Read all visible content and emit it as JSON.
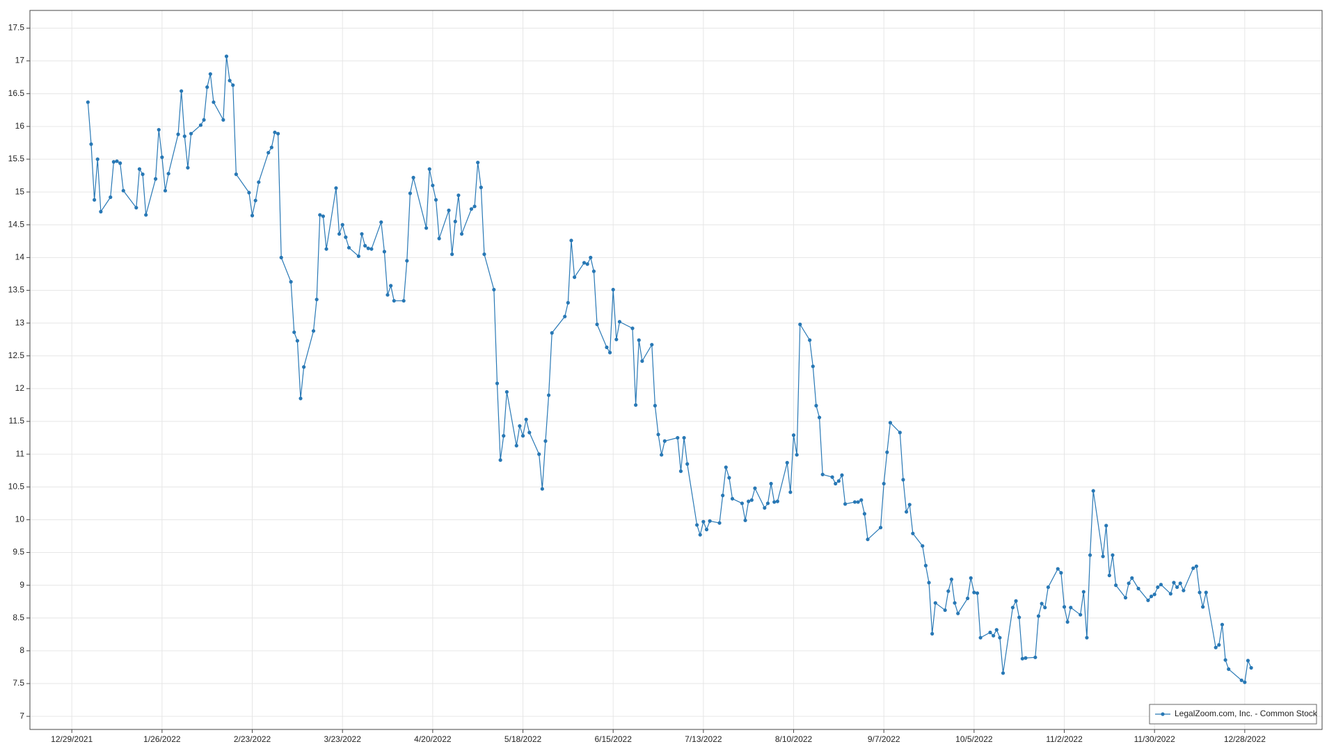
{
  "chart_data": {
    "type": "line",
    "x": [
      "1/3/2022",
      "1/4/2022",
      "1/5/2022",
      "1/6/2022",
      "1/7/2022",
      "1/10/2022",
      "1/11/2022",
      "1/12/2022",
      "1/13/2022",
      "1/14/2022",
      "1/18/2022",
      "1/19/2022",
      "1/20/2022",
      "1/21/2022",
      "1/24/2022",
      "1/25/2022",
      "1/26/2022",
      "1/27/2022",
      "1/28/2022",
      "1/31/2022",
      "2/1/2022",
      "2/2/2022",
      "2/3/2022",
      "2/4/2022",
      "2/7/2022",
      "2/8/2022",
      "2/9/2022",
      "2/10/2022",
      "2/11/2022",
      "2/14/2022",
      "2/15/2022",
      "2/16/2022",
      "2/17/2022",
      "2/18/2022",
      "2/22/2022",
      "2/23/2022",
      "2/24/2022",
      "2/25/2022",
      "2/28/2022",
      "3/1/2022",
      "3/2/2022",
      "3/3/2022",
      "3/4/2022",
      "3/7/2022",
      "3/8/2022",
      "3/9/2022",
      "3/10/2022",
      "3/11/2022",
      "3/14/2022",
      "3/15/2022",
      "3/16/2022",
      "3/17/2022",
      "3/18/2022",
      "3/21/2022",
      "3/22/2022",
      "3/23/2022",
      "3/24/2022",
      "3/25/2022",
      "3/28/2022",
      "3/29/2022",
      "3/30/2022",
      "3/31/2022",
      "4/1/2022",
      "4/4/2022",
      "4/5/2022",
      "4/6/2022",
      "4/7/2022",
      "4/8/2022",
      "4/11/2022",
      "4/12/2022",
      "4/13/2022",
      "4/14/2022",
      "4/18/2022",
      "4/19/2022",
      "4/20/2022",
      "4/21/2022",
      "4/22/2022",
      "4/25/2022",
      "4/26/2022",
      "4/27/2022",
      "4/28/2022",
      "4/29/2022",
      "5/2/2022",
      "5/3/2022",
      "5/4/2022",
      "5/5/2022",
      "5/6/2022",
      "5/9/2022",
      "5/10/2022",
      "5/11/2022",
      "5/12/2022",
      "5/13/2022",
      "5/16/2022",
      "5/17/2022",
      "5/18/2022",
      "5/19/2022",
      "5/20/2022",
      "5/23/2022",
      "5/24/2022",
      "5/25/2022",
      "5/26/2022",
      "5/27/2022",
      "5/31/2022",
      "6/1/2022",
      "6/2/2022",
      "6/3/2022",
      "6/6/2022",
      "6/7/2022",
      "6/8/2022",
      "6/9/2022",
      "6/10/2022",
      "6/13/2022",
      "6/14/2022",
      "6/15/2022",
      "6/16/2022",
      "6/17/2022",
      "6/21/2022",
      "6/22/2022",
      "6/23/2022",
      "6/24/2022",
      "6/27/2022",
      "6/28/2022",
      "6/29/2022",
      "6/30/2022",
      "7/1/2022",
      "7/5/2022",
      "7/6/2022",
      "7/7/2022",
      "7/8/2022",
      "7/11/2022",
      "7/12/2022",
      "7/13/2022",
      "7/14/2022",
      "7/15/2022",
      "7/18/2022",
      "7/19/2022",
      "7/20/2022",
      "7/21/2022",
      "7/22/2022",
      "7/25/2022",
      "7/26/2022",
      "7/27/2022",
      "7/28/2022",
      "7/29/2022",
      "8/1/2022",
      "8/2/2022",
      "8/3/2022",
      "8/4/2022",
      "8/5/2022",
      "8/8/2022",
      "8/9/2022",
      "8/10/2022",
      "8/11/2022",
      "8/12/2022",
      "8/15/2022",
      "8/16/2022",
      "8/17/2022",
      "8/18/2022",
      "8/19/2022",
      "8/22/2022",
      "8/23/2022",
      "8/24/2022",
      "8/25/2022",
      "8/26/2022",
      "8/29/2022",
      "8/30/2022",
      "8/31/2022",
      "9/1/2022",
      "9/2/2022",
      "9/6/2022",
      "9/7/2022",
      "9/8/2022",
      "9/9/2022",
      "9/12/2022",
      "9/13/2022",
      "9/14/2022",
      "9/15/2022",
      "9/16/2022",
      "9/19/2022",
      "9/20/2022",
      "9/21/2022",
      "9/22/2022",
      "9/23/2022",
      "9/26/2022",
      "9/27/2022",
      "9/28/2022",
      "9/29/2022",
      "9/30/2022",
      "10/3/2022",
      "10/4/2022",
      "10/5/2022",
      "10/6/2022",
      "10/7/2022",
      "10/10/2022",
      "10/11/2022",
      "10/12/2022",
      "10/13/2022",
      "10/14/2022",
      "10/17/2022",
      "10/18/2022",
      "10/19/2022",
      "10/20/2022",
      "10/21/2022",
      "10/24/2022",
      "10/25/2022",
      "10/26/2022",
      "10/27/2022",
      "10/28/2022",
      "10/31/2022",
      "11/1/2022",
      "11/2/2022",
      "11/3/2022",
      "11/4/2022",
      "11/7/2022",
      "11/8/2022",
      "11/9/2022",
      "11/10/2022",
      "11/11/2022",
      "11/14/2022",
      "11/15/2022",
      "11/16/2022",
      "11/17/2022",
      "11/18/2022",
      "11/21/2022",
      "11/22/2022",
      "11/23/2022",
      "11/25/2022",
      "11/28/2022",
      "11/29/2022",
      "11/30/2022",
      "12/1/2022",
      "12/2/2022",
      "12/5/2022",
      "12/6/2022",
      "12/7/2022",
      "12/8/2022",
      "12/9/2022",
      "12/12/2022",
      "12/13/2022",
      "12/14/2022",
      "12/15/2022",
      "12/16/2022",
      "12/19/2022",
      "12/20/2022",
      "12/21/2022",
      "12/22/2022",
      "12/23/2022",
      "12/27/2022",
      "12/28/2022",
      "12/29/2022",
      "12/30/2022"
    ],
    "series": [
      {
        "name": "LegalZoom.com, Inc. - Common Stock",
        "color": "#2878b5",
        "values": [
          16.37,
          15.73,
          14.88,
          15.5,
          14.7,
          14.92,
          15.46,
          15.47,
          15.44,
          15.02,
          14.76,
          15.35,
          15.27,
          14.65,
          15.2,
          15.95,
          15.53,
          15.02,
          15.28,
          15.88,
          16.54,
          15.85,
          15.37,
          15.89,
          16.02,
          16.1,
          16.6,
          16.8,
          16.37,
          16.1,
          17.07,
          16.7,
          16.63,
          15.27,
          14.99,
          14.64,
          14.87,
          15.15,
          15.6,
          15.68,
          15.91,
          15.89,
          14.0,
          13.63,
          12.86,
          12.73,
          11.85,
          12.33,
          12.88,
          13.36,
          14.65,
          14.63,
          14.13,
          15.06,
          14.36,
          14.5,
          14.31,
          14.15,
          14.02,
          14.36,
          14.18,
          14.14,
          14.13,
          14.54,
          14.09,
          13.43,
          13.57,
          13.34,
          13.34,
          13.95,
          14.98,
          15.22,
          14.45,
          15.35,
          15.1,
          14.88,
          14.29,
          14.72,
          14.05,
          14.55,
          14.95,
          14.36,
          14.74,
          14.78,
          15.45,
          15.07,
          14.05,
          13.51,
          12.08,
          10.91,
          11.28,
          11.95,
          11.13,
          11.43,
          11.28,
          11.53,
          11.33,
          11.0,
          10.47,
          11.2,
          11.9,
          12.85,
          13.1,
          13.31,
          14.26,
          13.7,
          13.92,
          13.9,
          14.0,
          13.79,
          12.98,
          12.63,
          12.55,
          13.51,
          12.75,
          13.02,
          12.92,
          11.75,
          12.74,
          12.42,
          12.67,
          11.74,
          11.3,
          10.99,
          11.2,
          11.25,
          10.74,
          11.25,
          10.85,
          9.92,
          9.77,
          9.97,
          9.85,
          9.98,
          9.95,
          10.37,
          10.8,
          10.64,
          10.32,
          10.25,
          9.99,
          10.28,
          10.3,
          10.48,
          10.18,
          10.25,
          10.55,
          10.27,
          10.28,
          10.87,
          10.42,
          11.29,
          10.99,
          12.98,
          12.74,
          12.34,
          11.74,
          11.56,
          10.69,
          10.65,
          10.55,
          10.59,
          10.68,
          10.24,
          10.27,
          10.27,
          10.3,
          10.09,
          9.7,
          9.88,
          10.55,
          11.03,
          11.48,
          11.33,
          10.61,
          10.12,
          10.23,
          9.79,
          9.6,
          9.3,
          9.04,
          8.26,
          8.73,
          8.62,
          8.91,
          9.09,
          8.73,
          8.57,
          8.8,
          9.11,
          8.89,
          8.88,
          8.2,
          8.28,
          8.23,
          8.32,
          8.2,
          7.66,
          8.66,
          8.76,
          8.51,
          7.88,
          7.89,
          7.9,
          8.53,
          8.72,
          8.66,
          8.97,
          9.25,
          9.19,
          8.67,
          8.44,
          8.66,
          8.55,
          8.9,
          8.2,
          9.46,
          10.44,
          9.44,
          9.91,
          9.15,
          9.46,
          9.0,
          8.81,
          9.03,
          9.11,
          8.95,
          8.77,
          8.83,
          8.86,
          8.97,
          9.01,
          8.87,
          9.04,
          8.97,
          9.03,
          8.92,
          9.26,
          9.29,
          8.89,
          8.67,
          8.89,
          8.05,
          8.09,
          8.4,
          7.86,
          7.72,
          7.55,
          7.52,
          7.85,
          7.74
        ]
      }
    ],
    "xlim": [
      "12/16/2021",
      "1/21/2023"
    ],
    "xticks": [
      "12/29/2021",
      "1/26/2022",
      "2/23/2022",
      "3/23/2022",
      "4/20/2022",
      "5/18/2022",
      "6/15/2022",
      "7/13/2022",
      "8/10/2022",
      "9/7/2022",
      "10/5/2022",
      "11/2/2022",
      "11/30/2022",
      "12/28/2022"
    ],
    "ylim": [
      6.8,
      17.77
    ],
    "yticks": [
      7,
      7.5,
      8,
      8.5,
      9,
      9.5,
      10,
      10.5,
      11,
      11.5,
      12,
      12.5,
      13,
      13.5,
      14,
      14.5,
      15,
      15.5,
      16,
      16.5,
      17,
      17.5
    ],
    "grid": true,
    "legend": "lower right"
  }
}
